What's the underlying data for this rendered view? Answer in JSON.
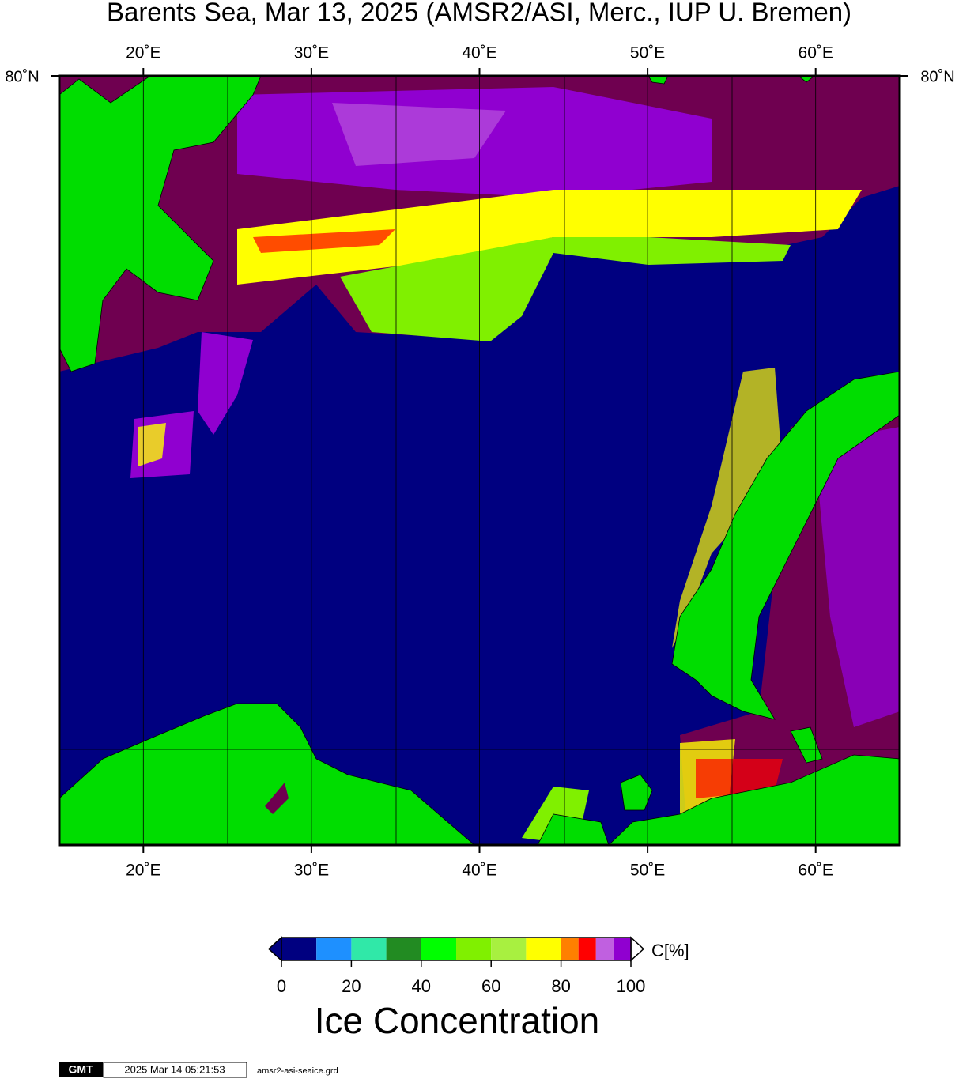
{
  "title": "Barents Sea, Mar 13, 2025 (AMSR2/ASI, Merc., IUP U. Bremen)",
  "map": {
    "type": "map",
    "xlim": [
      15,
      65
    ],
    "xticks": [
      {
        "value": 20,
        "label": "20˚E"
      },
      {
        "value": 30,
        "label": "30˚E"
      },
      {
        "value": 40,
        "label": "40˚E"
      },
      {
        "value": 50,
        "label": "50˚E"
      },
      {
        "value": 60,
        "label": "60˚E"
      }
    ],
    "lat_labels": [
      {
        "value": 80,
        "label": "80˚N"
      }
    ]
  },
  "colorbar": {
    "label": "C[%]",
    "title": "Ice Concentration",
    "lim": [
      0,
      100
    ],
    "ticks": [
      0,
      20,
      40,
      60,
      80,
      100
    ],
    "bins": [
      0,
      10,
      20,
      30,
      40,
      50,
      60,
      70,
      80,
      85,
      90,
      95,
      100
    ],
    "colors": [
      "#000080",
      "#1e90ff",
      "#30e8a8",
      "#228b22",
      "#00ff00",
      "#80f000",
      "#a8f040",
      "#ffff00",
      "#ff8000",
      "#ff0000",
      "#c060e0",
      "#9000d0"
    ]
  },
  "footer": {
    "logo": "GMT",
    "timestamp": "2025 Mar 14 05:21:53",
    "file": "amsr2-asi-seaice.grd"
  }
}
